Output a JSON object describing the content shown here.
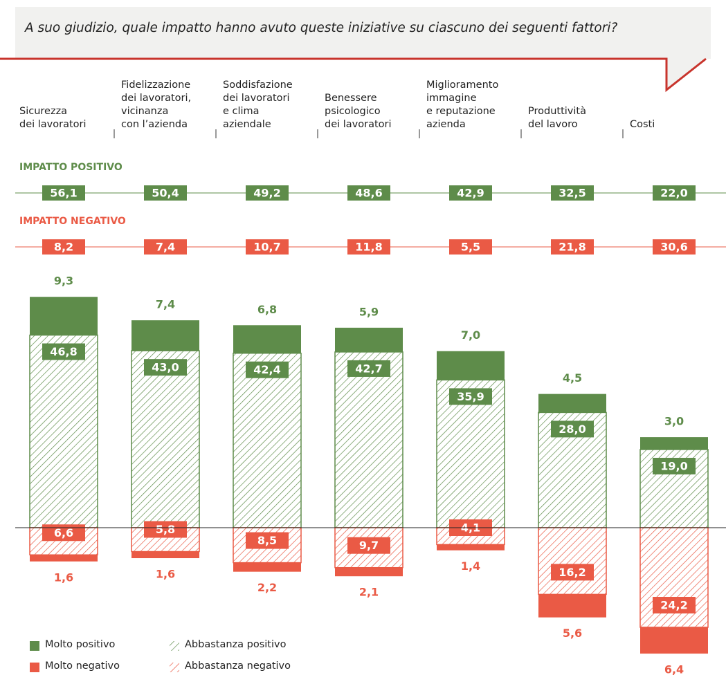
{
  "chart_data": {
    "type": "diverging-stacked-bar",
    "title": "A suo giudizio, quale impatto hanno avuto queste iniziative su ciascuno dei seguenti fattori?",
    "categories": [
      "Sicurezza\ndei lavoratori",
      "Fidelizzazione\ndei lavoratori,\nvicinanza\ncon l’azienda",
      "Soddisfazione\ndei lavoratori\ne clima\naziendale",
      "Benessere\npsicologico\ndei lavoratori",
      "Miglioramento\nimmagine\ne reputazione\nazienda",
      "Produttività\ndel lavoro",
      "Costi"
    ],
    "totals": [
      {
        "name": "IMPATTO POSITIVO",
        "color": "#5e8c4a",
        "values": [
          56.1,
          50.4,
          49.2,
          48.6,
          42.9,
          32.5,
          22.0
        ],
        "value_labels": [
          "56,1",
          "50,4",
          "49,2",
          "48,6",
          "42,9",
          "32,5",
          "22,0"
        ]
      },
      {
        "name": "IMPATTO NEGATIVO",
        "color": "#ea5a45",
        "values": [
          8.2,
          7.4,
          10.7,
          11.8,
          5.5,
          21.8,
          30.6
        ],
        "value_labels": [
          "8,2",
          "7,4",
          "10,7",
          "11,8",
          "5,5",
          "21,8",
          "30,6"
        ]
      }
    ],
    "series": [
      {
        "name": "Molto positivo",
        "color": "#5e8c4a",
        "hatch": false,
        "direction": "up",
        "values": [
          9.3,
          7.4,
          6.8,
          5.9,
          7.0,
          4.5,
          3.0
        ],
        "value_labels": [
          "9,3",
          "7,4",
          "6,8",
          "5,9",
          "7,0",
          "4,5",
          "3,0"
        ]
      },
      {
        "name": "Abbastanza positivo",
        "color": "#5e8c4a",
        "hatch": true,
        "direction": "up",
        "values": [
          46.8,
          43.0,
          42.4,
          42.7,
          35.9,
          28.0,
          19.0
        ],
        "value_labels": [
          "46,8",
          "43,0",
          "42,4",
          "42,7",
          "35,9",
          "28,0",
          "19,0"
        ]
      },
      {
        "name": "Molto negativo",
        "color": "#ea5a45",
        "hatch": false,
        "direction": "down",
        "values": [
          1.6,
          1.6,
          2.2,
          2.1,
          1.4,
          5.6,
          6.4
        ],
        "value_labels": [
          "1,6",
          "1,6",
          "2,2",
          "2,1",
          "1,4",
          "5,6",
          "6,4"
        ]
      },
      {
        "name": "Abbastanza negativo",
        "color": "#ea5a45",
        "hatch": true,
        "direction": "down",
        "values": [
          6.6,
          5.8,
          8.5,
          9.7,
          4.1,
          16.2,
          24.2
        ],
        "value_labels": [
          "6,6",
          "5,8",
          "8,5",
          "9,7",
          "4,1",
          "16,2",
          "24,2"
        ]
      }
    ]
  }
}
